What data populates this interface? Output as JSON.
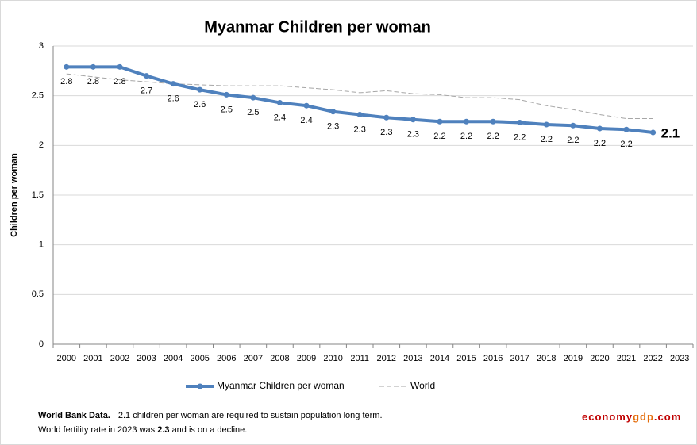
{
  "chart_data": {
    "type": "line",
    "title": "Myanmar Children per woman",
    "y_label": "Children per woman",
    "categories": [
      "2000",
      "2001",
      "2002",
      "2003",
      "2004",
      "2005",
      "2006",
      "2007",
      "2008",
      "2009",
      "2010",
      "2011",
      "2012",
      "2013",
      "2014",
      "2015",
      "2016",
      "2017",
      "2018",
      "2019",
      "2020",
      "2021",
      "2022",
      "2023"
    ],
    "series": [
      {
        "name": "Myanmar Children per woman",
        "color": "#4f81bd",
        "values": [
          2.79,
          2.79,
          2.79,
          2.7,
          2.62,
          2.56,
          2.51,
          2.48,
          2.43,
          2.4,
          2.34,
          2.31,
          2.28,
          2.26,
          2.24,
          2.24,
          2.24,
          2.23,
          2.21,
          2.2,
          2.17,
          2.16,
          2.13,
          null
        ],
        "value_labels": [
          "2.8",
          "2.8",
          "2.8",
          "2.7",
          "2.6",
          "2.6",
          "2.5",
          "2.5",
          "2.4",
          "2.4",
          "2.3",
          "2.3",
          "2.3",
          "2.3",
          "2.2",
          "2.2",
          "2.2",
          "2.2",
          "2.2",
          "2.2",
          "2.2",
          "2.2",
          "2.1",
          null
        ]
      },
      {
        "name": "World",
        "color": "#a6a6a6",
        "values": [
          2.72,
          2.69,
          2.66,
          2.64,
          2.62,
          2.61,
          2.6,
          2.6,
          2.6,
          2.58,
          2.56,
          2.53,
          2.55,
          2.52,
          2.51,
          2.48,
          2.48,
          2.46,
          2.4,
          2.36,
          2.31,
          2.27,
          2.27,
          null
        ]
      }
    ],
    "ylim": [
      0,
      3
    ],
    "yticks": [
      0,
      0.5,
      1,
      1.5,
      2,
      2.5,
      3
    ],
    "grid": true,
    "footnote": {
      "source": "World Bank Data.",
      "line1": "2.1 children per woman are required to sustain population long term.",
      "line2_a": "World fertility rate in 2023 was",
      "line2_b": "2.3",
      "line2_c": "and is on a decline."
    },
    "brand": {
      "a": "economy",
      "b": "gdp",
      "c": ".com"
    }
  }
}
